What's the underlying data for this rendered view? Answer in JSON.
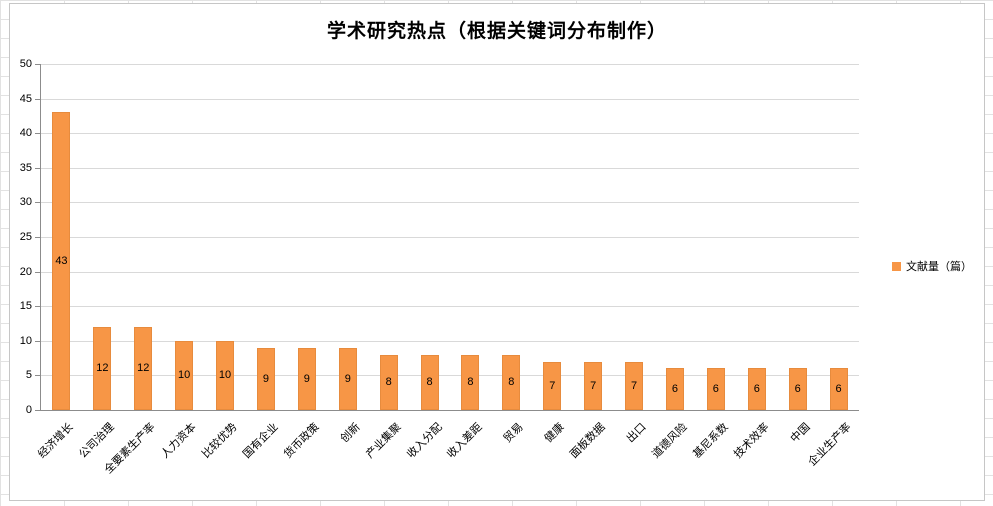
{
  "title": "学术研究热点（根据关键词分布制作）",
  "legend": {
    "label": "文献量（篇）",
    "color": "#f79646"
  },
  "colors": {
    "bar": "#f79646",
    "gridline": "#d9d9d9",
    "axis": "#8c8c8c"
  },
  "chart_data": {
    "type": "bar",
    "title": "学术研究热点（根据关键词分布制作）",
    "categories": [
      "经济增长",
      "公司治理",
      "全要素生产率",
      "人力资本",
      "比较优势",
      "国有企业",
      "货币政策",
      "创新",
      "产业集聚",
      "收入分配",
      "收入差距",
      "贸易",
      "健康",
      "面板数据",
      "出口",
      "道德风险",
      "基尼系数",
      "技术效率",
      "中国",
      "企业生产率"
    ],
    "values": [
      43,
      12,
      12,
      10,
      10,
      9,
      9,
      9,
      8,
      8,
      8,
      8,
      7,
      7,
      7,
      6,
      6,
      6,
      6,
      6
    ],
    "series_name": "文献量（篇）",
    "xlabel": "",
    "ylabel": "",
    "ylim": [
      0,
      50
    ],
    "ytick_interval": 5,
    "grid": true,
    "legend_position": "right",
    "data_labels": "center"
  }
}
